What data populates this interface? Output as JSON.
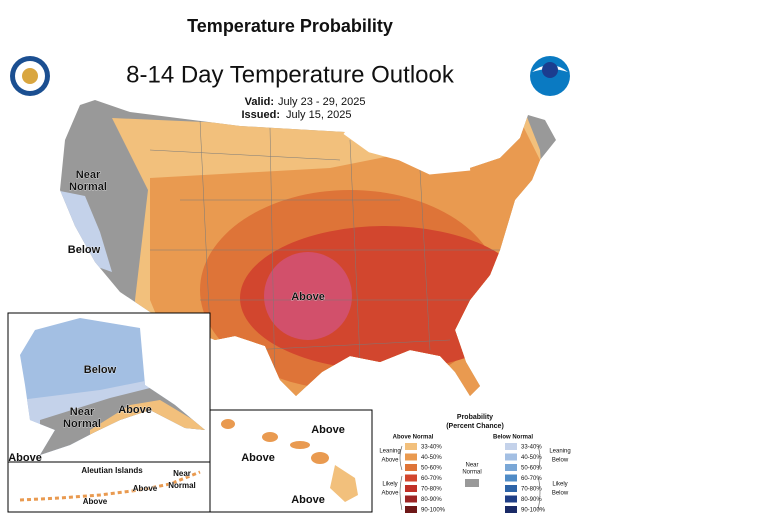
{
  "header": {
    "title": "Temperature Probability"
  },
  "map": {
    "title": "8-14 Day Temperature Outlook",
    "valid_label": "Valid:",
    "valid": "July 23 - 29, 2025",
    "issued_label": "Issued:",
    "issued": "July 15, 2025",
    "conus_labels": [
      [
        "Near",
        "Normal"
      ],
      [
        "Below"
      ],
      [
        "Above"
      ]
    ],
    "alaska_labels": [
      [
        "Below"
      ],
      [
        "Near",
        "Normal"
      ],
      [
        "Above"
      ],
      [
        "Above"
      ]
    ],
    "aleutian_title": "Aleutian Islands",
    "aleutian_labels": [
      [
        "Near",
        "Normal"
      ],
      [
        "Above"
      ],
      [
        "Above"
      ]
    ],
    "hawaii_labels": [
      [
        "Above"
      ],
      [
        "Above"
      ],
      [
        "Above"
      ]
    ]
  },
  "legend": {
    "title": "Probability",
    "subtitle": "(Percent Chance)",
    "above": {
      "name": "Above Normal",
      "ranges": [
        "33-40%",
        "40-50%",
        "50-60%",
        "60-70%",
        "70-80%",
        "80-90%",
        "90-100%"
      ],
      "colors": [
        "#f2c07c",
        "#e99a50",
        "#de7438",
        "#d2462e",
        "#c03027",
        "#9c2424",
        "#6e1717"
      ]
    },
    "below": {
      "name": "Below Normal",
      "ranges": [
        "33-40%",
        "40-50%",
        "50-60%",
        "60-70%",
        "70-80%",
        "80-90%",
        "90-100%"
      ],
      "colors": [
        "#c4d2ea",
        "#a3bfe3",
        "#7aa7d6",
        "#4f8bc6",
        "#2d63a7",
        "#1f3e86",
        "#1a2a66"
      ]
    },
    "near": {
      "lines": [
        "Near",
        "Normal"
      ],
      "color": "#999999"
    },
    "leaning_above": [
      "Leaning",
      "Above"
    ],
    "likely_above": [
      "Likely",
      "Above"
    ],
    "leaning_below": [
      "Leaning",
      "Below"
    ],
    "likely_below": [
      "Likely",
      "Below"
    ]
  }
}
